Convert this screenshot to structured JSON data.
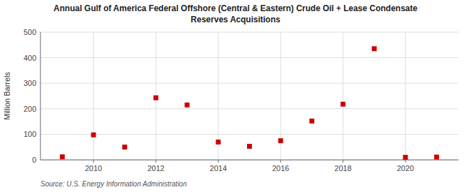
{
  "chart_data": {
    "type": "scatter",
    "title": "Annual Gulf of America Federal Offshore (Central & Eastern) Crude Oil + Lease Condensate",
    "subtitle": "Reserves Acquisitions",
    "y_label": "Million Barrels",
    "source": "Source: U.S. Energy Information Administration",
    "x": [
      2009,
      2010,
      2011,
      2012,
      2013,
      2014,
      2015,
      2016,
      2017,
      2018,
      2019,
      2020,
      2021
    ],
    "values": [
      12,
      98,
      50,
      243,
      215,
      70,
      53,
      75,
      152,
      218,
      435,
      10,
      11
    ],
    "color": "#cc0000",
    "marker": "square",
    "xlim": [
      2008.3,
      2021.7
    ],
    "ylim": [
      0,
      500
    ],
    "xticks": [
      2010,
      2012,
      2014,
      2016,
      2018,
      2020
    ],
    "yticks": [
      0,
      100,
      200,
      300,
      400,
      500
    ],
    "grid": true
  }
}
